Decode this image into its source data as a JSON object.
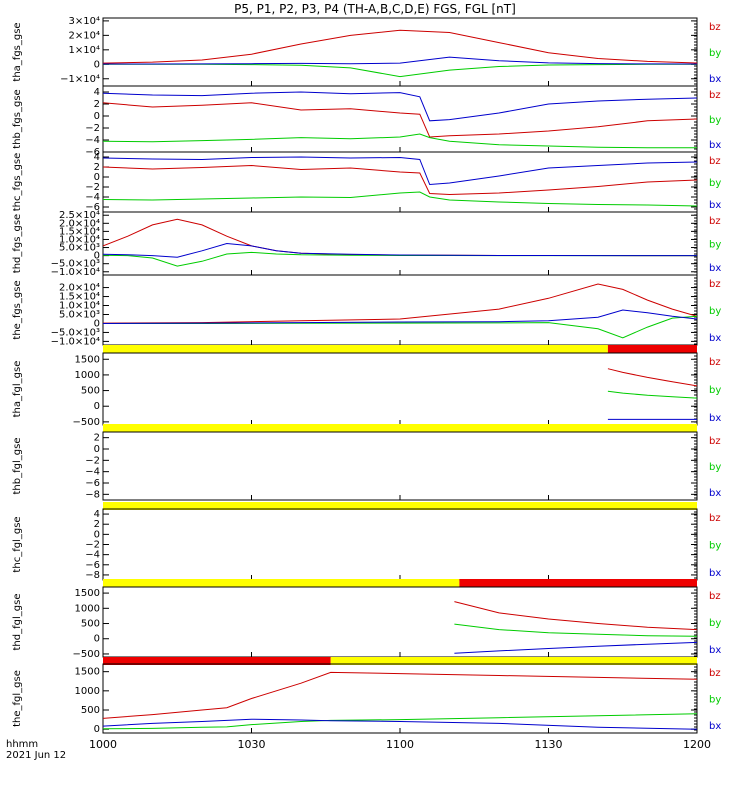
{
  "title": "P5, P1, P2, P3, P4 (TH-A,B,C,D,E) FGS, FGL [nT]",
  "xaxis": {
    "ticks": [
      "1000",
      "1030",
      "1100",
      "1130",
      "1200"
    ],
    "label_line1": "hhmm",
    "label_line2": "2021 Jun 12"
  },
  "colors": {
    "bx": "#0000cc",
    "by": "#00cc00",
    "bz": "#cc0000",
    "bar_on": "#ffff00",
    "bar_off": "#ee0000"
  },
  "legend": [
    "bz",
    "by",
    "bx"
  ],
  "chart_data": [
    {
      "type": "line",
      "ylabel": "tha_fgs_gse",
      "ylim": [
        -15000,
        32000
      ],
      "yticks": [
        "3×10⁴",
        "2×10⁴",
        "1×10⁴",
        "0",
        "−1×10⁴"
      ],
      "ytick_values": [
        30000,
        20000,
        10000,
        0,
        -10000
      ],
      "x": [
        0,
        10,
        20,
        30,
        40,
        50,
        60,
        70,
        80,
        90,
        100,
        110,
        120
      ],
      "series": [
        {
          "name": "bz",
          "values": [
            800,
            1500,
            3000,
            7000,
            14000,
            20000,
            23500,
            22000,
            15000,
            8000,
            4000,
            2000,
            900
          ]
        },
        {
          "name": "by",
          "values": [
            100,
            100,
            0,
            -200,
            -700,
            -2500,
            -8500,
            -4000,
            -1500,
            -500,
            -200,
            0,
            0
          ]
        },
        {
          "name": "bx",
          "values": [
            200,
            200,
            300,
            400,
            600,
            400,
            800,
            5000,
            2500,
            1000,
            500,
            300,
            200
          ]
        }
      ]
    },
    {
      "type": "line",
      "ylabel": "thb_fgs_gse",
      "ylim": [
        -6,
        5
      ],
      "yticks": [
        "4",
        "2",
        "0",
        "−2",
        "−4",
        "−6"
      ],
      "ytick_values": [
        4,
        2,
        0,
        -2,
        -4,
        -6
      ],
      "x": [
        0,
        10,
        20,
        30,
        40,
        50,
        60,
        64,
        66,
        70,
        80,
        90,
        100,
        110,
        120
      ],
      "series": [
        {
          "name": "bz",
          "values": [
            2.2,
            1.5,
            1.8,
            2.2,
            1.0,
            1.2,
            0.5,
            0.3,
            -3.5,
            -3.3,
            -3.0,
            -2.5,
            -1.8,
            -0.8,
            -0.5
          ]
        },
        {
          "name": "by",
          "values": [
            -4.2,
            -4.3,
            -4.1,
            -3.9,
            -3.6,
            -3.8,
            -3.5,
            -3.0,
            -3.6,
            -4.2,
            -4.8,
            -5.0,
            -5.2,
            -5.3,
            -5.3
          ]
        },
        {
          "name": "bx",
          "values": [
            3.8,
            3.5,
            3.4,
            3.8,
            4.0,
            3.7,
            3.9,
            3.2,
            -0.8,
            -0.6,
            0.5,
            2.0,
            2.5,
            2.8,
            3.0
          ]
        }
      ]
    },
    {
      "type": "line",
      "ylabel": "thc_fgs_gse",
      "ylim": [
        -7,
        5
      ],
      "yticks": [
        "4",
        "2",
        "0",
        "−2",
        "−4",
        "−6"
      ],
      "ytick_values": [
        4,
        2,
        0,
        -2,
        -4,
        -6
      ],
      "x": [
        0,
        10,
        20,
        30,
        40,
        50,
        60,
        64,
        66,
        70,
        80,
        90,
        100,
        110,
        120
      ],
      "series": [
        {
          "name": "bz",
          "values": [
            2.0,
            1.6,
            1.9,
            2.3,
            1.5,
            1.8,
            1.0,
            0.8,
            -3.3,
            -3.5,
            -3.2,
            -2.6,
            -1.9,
            -1.0,
            -0.6
          ]
        },
        {
          "name": "by",
          "values": [
            -4.5,
            -4.6,
            -4.4,
            -4.2,
            -4.0,
            -4.1,
            -3.2,
            -3.0,
            -4.0,
            -4.6,
            -5.0,
            -5.3,
            -5.5,
            -5.6,
            -5.8
          ]
        },
        {
          "name": "bx",
          "values": [
            3.8,
            3.6,
            3.5,
            3.9,
            4.0,
            3.8,
            3.9,
            3.5,
            -1.5,
            -1.2,
            0.2,
            1.8,
            2.3,
            2.8,
            3.0
          ]
        }
      ]
    },
    {
      "type": "line",
      "ylabel": "thd_fgs_gse",
      "ylim": [
        -12000,
        27000
      ],
      "yticks": [
        "2.5×10⁴",
        "2.0×10⁴",
        "1.5×10⁴",
        "1.0×10⁴",
        "5.0×10³",
        "0",
        "−5.0×10³",
        "−1.0×10⁴"
      ],
      "ytick_values": [
        25000,
        20000,
        15000,
        10000,
        5000,
        0,
        -5000,
        -10000
      ],
      "x": [
        0,
        5,
        10,
        15,
        20,
        25,
        30,
        35,
        40,
        50,
        60,
        70,
        80,
        90,
        100,
        110,
        120
      ],
      "series": [
        {
          "name": "bz",
          "values": [
            6000,
            12000,
            19000,
            22500,
            19000,
            12000,
            6000,
            3000,
            1500,
            600,
            300,
            200,
            100,
            100,
            100,
            0,
            0
          ]
        },
        {
          "name": "by",
          "values": [
            200,
            0,
            -1500,
            -6500,
            -3500,
            1000,
            2000,
            1000,
            500,
            200,
            100,
            100,
            0,
            0,
            0,
            0,
            0
          ]
        },
        {
          "name": "bx",
          "values": [
            800,
            500,
            0,
            -1000,
            3000,
            7500,
            6000,
            3000,
            1500,
            800,
            400,
            200,
            100,
            50,
            0,
            0,
            0
          ]
        }
      ]
    },
    {
      "type": "line",
      "ylabel": "the_fgs_gse",
      "ylim": [
        -12000,
        27000
      ],
      "yticks": [
        "2.0×10⁴",
        "1.5×10⁴",
        "1.0×10⁴",
        "5.0×10³",
        "0",
        "−5.0×10³",
        "−1.0×10⁴"
      ],
      "ytick_values": [
        20000,
        15000,
        10000,
        5000,
        0,
        -5000,
        -10000
      ],
      "x": [
        0,
        20,
        40,
        60,
        80,
        90,
        100,
        105,
        110,
        115,
        120
      ],
      "series": [
        {
          "name": "bz",
          "values": [
            200,
            500,
            1500,
            2500,
            8000,
            14000,
            22000,
            19000,
            13000,
            8000,
            4000
          ]
        },
        {
          "name": "by",
          "values": [
            0,
            0,
            100,
            200,
            300,
            500,
            -3000,
            -8000,
            -2000,
            3000,
            4000
          ]
        },
        {
          "name": "bx",
          "values": [
            0,
            200,
            500,
            800,
            1000,
            1500,
            3500,
            7500,
            6000,
            4000,
            2500
          ]
        }
      ]
    },
    {
      "type": "line",
      "ylabel": "tha_fgl_gse",
      "ylim": [
        -600,
        1700
      ],
      "yticks": [
        "1500",
        "1000",
        "500",
        "0",
        "−500"
      ],
      "ytick_values": [
        1500,
        1000,
        500,
        0,
        -500
      ],
      "x": [
        102,
        105,
        110,
        115,
        120
      ],
      "series": [
        {
          "name": "bz",
          "values": [
            1200,
            1080,
            920,
            780,
            650
          ]
        },
        {
          "name": "by",
          "values": [
            480,
            420,
            350,
            300,
            260
          ]
        },
        {
          "name": "bx",
          "values": [
            -420,
            -420,
            -420,
            -420,
            -420
          ]
        }
      ],
      "state_bar": [
        {
          "from": 0,
          "to": 102,
          "state": "on"
        },
        {
          "from": 102,
          "to": 120,
          "state": "off"
        }
      ]
    },
    {
      "type": "line",
      "ylabel": "thb_fgl_gse",
      "ylim": [
        -9,
        3
      ],
      "yticks": [
        "2",
        "0",
        "−2",
        "−4",
        "−6",
        "−8"
      ],
      "ytick_values": [
        2,
        0,
        -2,
        -4,
        -6,
        -8
      ],
      "x": [],
      "series": [],
      "state_bar": [
        {
          "from": 0,
          "to": 120,
          "state": "on"
        }
      ]
    },
    {
      "type": "line",
      "ylabel": "thc_fgl_gse",
      "ylim": [
        -9,
        5
      ],
      "yticks": [
        "4",
        "2",
        "0",
        "−2",
        "−4",
        "−6",
        "−8"
      ],
      "ytick_values": [
        4,
        2,
        0,
        -2,
        -4,
        -6,
        -8
      ],
      "x": [],
      "series": [],
      "state_bar": [
        {
          "from": 0,
          "to": 120,
          "state": "on"
        }
      ]
    },
    {
      "type": "line",
      "ylabel": "thd_fgl_gse",
      "ylim": [
        -600,
        1700
      ],
      "yticks": [
        "1500",
        "1000",
        "500",
        "0",
        "−500"
      ],
      "ytick_values": [
        1500,
        1000,
        500,
        0,
        -500
      ],
      "x": [
        71,
        80,
        90,
        100,
        110,
        120
      ],
      "series": [
        {
          "name": "bz",
          "values": [
            1220,
            850,
            650,
            500,
            380,
            300
          ]
        },
        {
          "name": "by",
          "values": [
            480,
            300,
            200,
            150,
            100,
            80
          ]
        },
        {
          "name": "bx",
          "values": [
            -480,
            -400,
            -320,
            -250,
            -180,
            -120
          ]
        }
      ],
      "state_bar": [
        {
          "from": 0,
          "to": 72,
          "state": "on"
        },
        {
          "from": 72,
          "to": 120,
          "state": "off"
        }
      ]
    },
    {
      "type": "line",
      "ylabel": "the_fgl_gse",
      "ylim": [
        -100,
        1700
      ],
      "yticks": [
        "1500",
        "1000",
        "500",
        "0"
      ],
      "ytick_values": [
        1500,
        1000,
        500,
        0
      ],
      "x": [
        0,
        10,
        20,
        25,
        30,
        40,
        46,
        60,
        80,
        100,
        120
      ],
      "series": [
        {
          "name": "bz",
          "values": [
            280,
            380,
            500,
            560,
            800,
            1200,
            1480,
            1450,
            1400,
            1350,
            1300
          ]
        },
        {
          "name": "by",
          "values": [
            10,
            20,
            50,
            60,
            120,
            200,
            230,
            250,
            300,
            350,
            400
          ]
        },
        {
          "name": "bx",
          "values": [
            80,
            150,
            200,
            230,
            260,
            240,
            220,
            200,
            150,
            50,
            0
          ]
        }
      ],
      "state_bar": [
        {
          "from": 0,
          "to": 46,
          "state": "off"
        },
        {
          "from": 46,
          "to": 120,
          "state": "on"
        }
      ]
    }
  ]
}
